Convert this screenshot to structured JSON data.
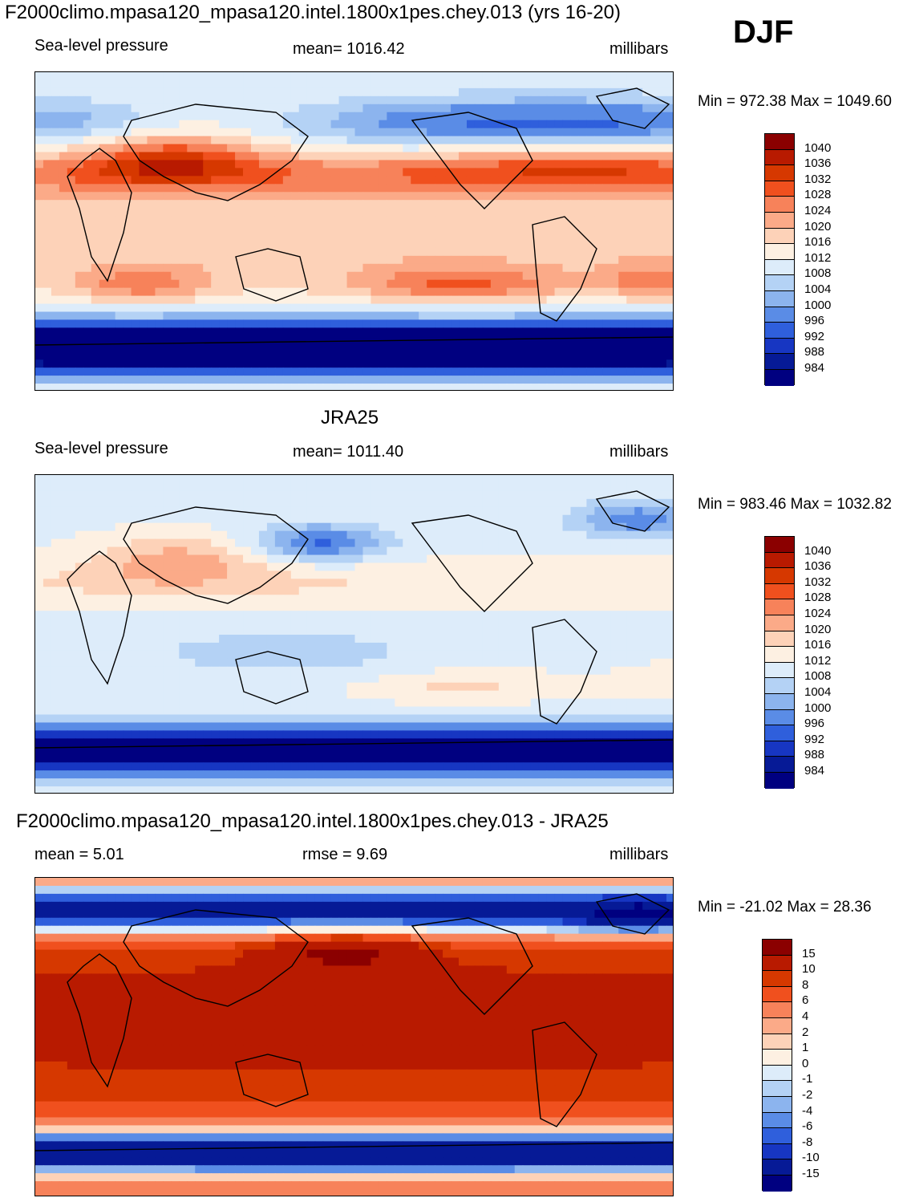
{
  "header": {
    "main_title": "F2000climo.mpasa120_mpasa120.intel.1800x1pes.chey.013 (yrs 16-20)",
    "season": "DJF"
  },
  "chart_data": [
    {
      "type": "heatmap",
      "panel": "model",
      "title": "",
      "left_label": "Sea-level pressure",
      "center_label": "mean= 1016.42",
      "right_label": "millibars",
      "minmax": "Min = 972.38 Max = 1049.60",
      "levels": [
        "1040",
        "1036",
        "1032",
        "1028",
        "1024",
        "1020",
        "1016",
        "1012",
        "1008",
        "1004",
        "1000",
        "996",
        "992",
        "988",
        "984"
      ],
      "colors": [
        "#8b0000",
        "#b81a00",
        "#d63800",
        "#f0501e",
        "#f7825a",
        "#fbaa88",
        "#fdd2b8",
        "#fdf0e2",
        "#ddecfa",
        "#b4d2f5",
        "#8cb4ee",
        "#5a8ce6",
        "#2f5fdc",
        "#1736c2",
        "#061a96",
        "#000080"
      ],
      "field": "model"
    },
    {
      "type": "heatmap",
      "panel": "obs",
      "title": "JRA25",
      "left_label": "Sea-level pressure",
      "center_label": "mean= 1011.40",
      "right_label": "millibars",
      "minmax": "Min = 983.46 Max = 1032.82",
      "levels": [
        "1040",
        "1036",
        "1032",
        "1028",
        "1024",
        "1020",
        "1016",
        "1012",
        "1008",
        "1004",
        "1000",
        "996",
        "992",
        "988",
        "984"
      ],
      "colors": [
        "#8b0000",
        "#b81a00",
        "#d63800",
        "#f0501e",
        "#f7825a",
        "#fbaa88",
        "#fdd2b8",
        "#fdf0e2",
        "#ddecfa",
        "#b4d2f5",
        "#8cb4ee",
        "#5a8ce6",
        "#2f5fdc",
        "#1736c2",
        "#061a96",
        "#000080"
      ],
      "field": "obs"
    },
    {
      "type": "heatmap",
      "panel": "diff",
      "title": "F2000climo.mpasa120_mpasa120.intel.1800x1pes.chey.013 - JRA25",
      "left_label": "mean =   5.01",
      "center_label": "rmse =   9.69",
      "right_label": "millibars",
      "minmax": "Min = -21.02 Max =  28.36",
      "levels": [
        "15",
        "10",
        "8",
        "6",
        "4",
        "2",
        "1",
        "0",
        "-1",
        "-2",
        "-4",
        "-6",
        "-8",
        "-10",
        "-15"
      ],
      "colors": [
        "#8b0000",
        "#b81a00",
        "#d63800",
        "#f0501e",
        "#f7825a",
        "#fbaa88",
        "#fdd2b8",
        "#fdf0e2",
        "#ddecfa",
        "#b4d2f5",
        "#8cb4ee",
        "#5a8ce6",
        "#2f5fdc",
        "#1736c2",
        "#061a96",
        "#000080"
      ],
      "field": "diff"
    }
  ]
}
